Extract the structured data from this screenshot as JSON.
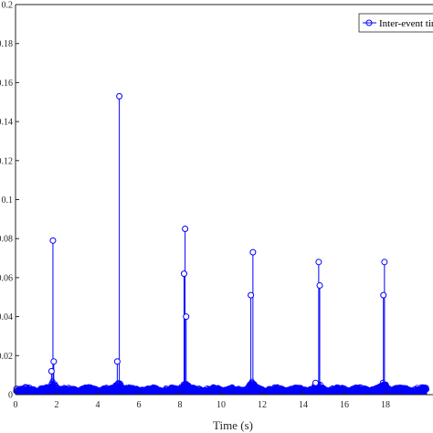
{
  "chart_data": {
    "type": "line",
    "title": "",
    "xlabel": "Time (s)",
    "ylabel": "",
    "xlim": [
      0,
      20
    ],
    "ylim": [
      0,
      0.2
    ],
    "xticks": [
      0,
      2,
      4,
      6,
      8,
      10,
      12,
      14,
      16,
      18
    ],
    "xtick_labels": [
      "0",
      "2",
      "4",
      "6",
      "8",
      "10",
      "12",
      "14",
      "16",
      "18"
    ],
    "yticks": [
      0,
      0.02,
      0.04,
      0.06,
      0.08,
      0.1,
      0.12,
      0.14,
      0.16,
      0.18,
      0.2
    ],
    "ytick_labels": [
      "0",
      "0.02",
      "0.04",
      "0.06",
      "0.08",
      "0.1",
      "0.12",
      "0.14",
      "0.16",
      "0.18",
      "0.2"
    ],
    "grid": false,
    "legend_position": "top-right",
    "series": [
      {
        "name": "Inter-event tim",
        "style": "stem",
        "marker": "circle",
        "color": "#0000ff",
        "peaks": [
          {
            "x": 1.75,
            "y": 0.012
          },
          {
            "x": 1.82,
            "y": 0.079
          },
          {
            "x": 1.86,
            "y": 0.017
          },
          {
            "x": 4.95,
            "y": 0.017
          },
          {
            "x": 5.05,
            "y": 0.153
          },
          {
            "x": 8.2,
            "y": 0.062
          },
          {
            "x": 8.25,
            "y": 0.085
          },
          {
            "x": 8.3,
            "y": 0.04
          },
          {
            "x": 11.45,
            "y": 0.051
          },
          {
            "x": 11.55,
            "y": 0.073
          },
          {
            "x": 14.6,
            "y": 0.006
          },
          {
            "x": 14.75,
            "y": 0.068
          },
          {
            "x": 14.8,
            "y": 0.056
          },
          {
            "x": 17.9,
            "y": 0.051
          },
          {
            "x": 17.95,
            "y": 0.068
          }
        ],
        "baseline_band": {
          "min": 0.0,
          "max": 0.005,
          "burst_centers": [
            1.8,
            5.0,
            8.25,
            11.5,
            14.7,
            17.9
          ],
          "burst_max": 0.007
        },
        "baseline_markers_y": 0.003
      }
    ]
  }
}
